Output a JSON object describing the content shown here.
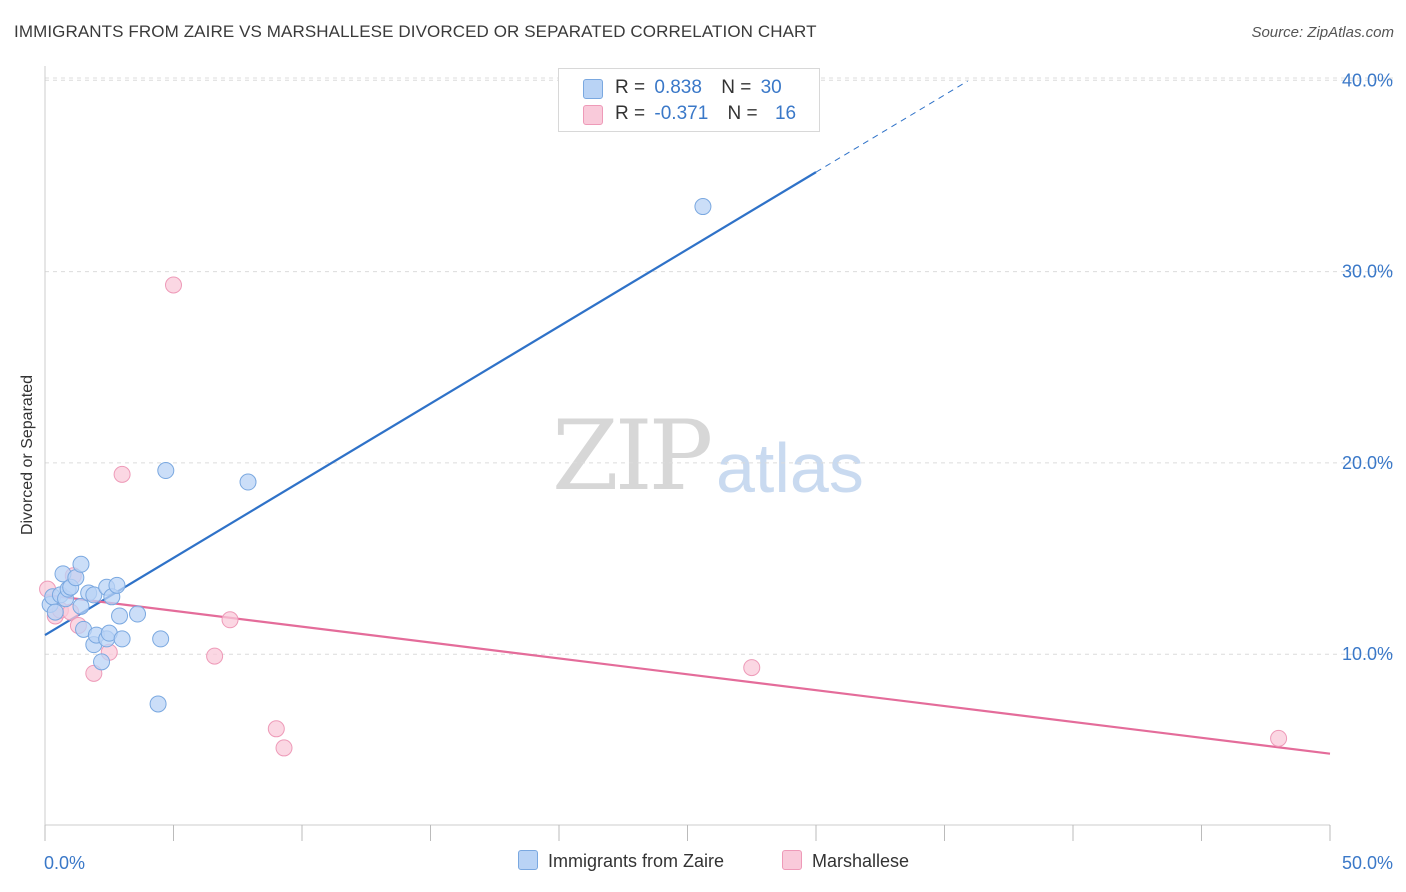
{
  "header": {
    "title": "IMMIGRANTS FROM ZAIRE VS MARSHALLESE DIVORCED OR SEPARATED CORRELATION CHART",
    "source": "Source: ZipAtlas.com"
  },
  "watermark": {
    "zip": "ZIP",
    "atlas": "atlas"
  },
  "legend_top": {
    "rows": [
      {
        "r_label": "R =",
        "r_value": "0.838",
        "n_label": "N =",
        "n_value": "30"
      },
      {
        "r_label": "R =",
        "r_value": "-0.371",
        "n_label": "N =",
        "n_value": "16"
      }
    ]
  },
  "legend_bottom": {
    "items": [
      "Immigrants from Zaire",
      "Marshallese"
    ]
  },
  "colors": {
    "blue_fill": "#b9d3f5",
    "blue_stroke": "#7aa8e0",
    "blue_line": "#2f72c8",
    "pink_fill": "#f9cada",
    "pink_stroke": "#ee9ab8",
    "pink_line": "#e46c9a",
    "tick_label": "#3a78c8"
  },
  "chart_data": {
    "type": "scatter",
    "title": "IMMIGRANTS FROM ZAIRE VS MARSHALLESE DIVORCED OR SEPARATED CORRELATION CHART",
    "xlabel": "",
    "ylabel": "Divorced or Separated",
    "xlim": [
      0,
      50
    ],
    "ylim": [
      0,
      42
    ],
    "x_tick_labels": [
      "0.0%",
      "50.0%"
    ],
    "y_ticks": [
      10,
      20,
      30,
      40
    ],
    "y_tick_labels": [
      "10.0%",
      "20.0%",
      "30.0%",
      "40.0%"
    ],
    "grid": "horizontal dashed",
    "series": [
      {
        "name": "Immigrants from Zaire",
        "points": [
          [
            0.2,
            12.6
          ],
          [
            0.3,
            13.0
          ],
          [
            0.4,
            12.2
          ],
          [
            0.6,
            13.1
          ],
          [
            0.7,
            14.2
          ],
          [
            0.8,
            12.9
          ],
          [
            0.9,
            13.4
          ],
          [
            1.0,
            13.5
          ],
          [
            1.2,
            14.0
          ],
          [
            1.4,
            12.5
          ],
          [
            1.4,
            14.7
          ],
          [
            1.5,
            11.3
          ],
          [
            1.7,
            13.2
          ],
          [
            1.9,
            13.1
          ],
          [
            1.9,
            10.5
          ],
          [
            2.0,
            11.0
          ],
          [
            2.2,
            9.6
          ],
          [
            2.4,
            10.8
          ],
          [
            2.4,
            13.5
          ],
          [
            2.5,
            11.1
          ],
          [
            2.6,
            13.0
          ],
          [
            2.8,
            13.6
          ],
          [
            2.9,
            12.0
          ],
          [
            3.0,
            10.8
          ],
          [
            3.6,
            12.1
          ],
          [
            4.4,
            7.4
          ],
          [
            4.5,
            10.8
          ],
          [
            4.7,
            19.6
          ],
          [
            7.9,
            19.0
          ],
          [
            25.6,
            33.4
          ]
        ],
        "trend": {
          "x": [
            0,
            30
          ],
          "y": [
            11.0,
            35.2
          ],
          "dashed_extension_to_x": 35.9
        }
      },
      {
        "name": "Marshallese",
        "points": [
          [
            0.1,
            13.4
          ],
          [
            0.4,
            12.0
          ],
          [
            0.6,
            12.3
          ],
          [
            1.0,
            12.2
          ],
          [
            1.1,
            14.1
          ],
          [
            1.3,
            11.5
          ],
          [
            1.9,
            9.0
          ],
          [
            2.5,
            10.1
          ],
          [
            3.0,
            19.4
          ],
          [
            5.0,
            29.3
          ],
          [
            6.6,
            9.9
          ],
          [
            7.2,
            11.8
          ],
          [
            9.0,
            6.1
          ],
          [
            9.3,
            5.1
          ],
          [
            27.5,
            9.3
          ],
          [
            48.0,
            5.6
          ]
        ],
        "trend": {
          "x": [
            0,
            50
          ],
          "y": [
            13.1,
            4.8
          ]
        }
      }
    ]
  }
}
